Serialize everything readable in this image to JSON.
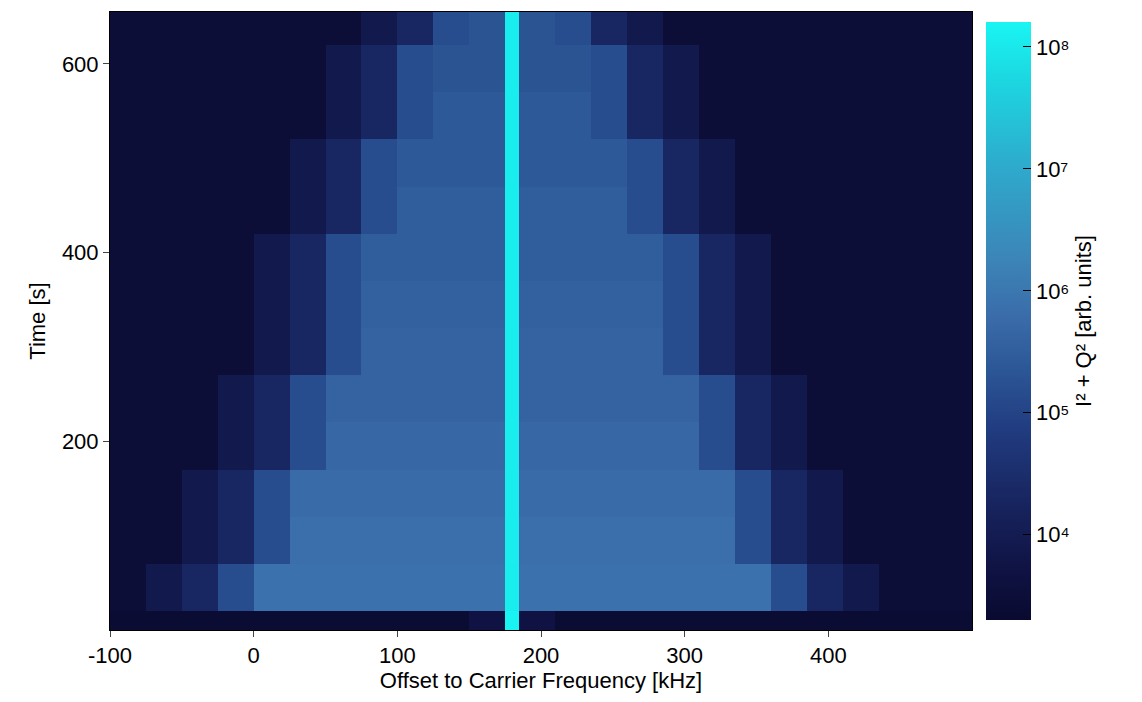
{
  "chart_data": {
    "type": "heatmap",
    "x_label": "Offset to Carrier Frequency [kHz]",
    "y_label": "Time [s]",
    "colorbar_label": "I² + Q² [arb. units]",
    "log": true,
    "x": [
      -100,
      -75,
      -50,
      -25,
      0,
      25,
      50,
      75,
      100,
      125,
      150,
      175,
      185,
      210,
      235,
      260,
      285,
      310,
      335,
      360,
      385,
      410,
      435,
      460,
      500
    ],
    "y": [
      0,
      20,
      70,
      120,
      170,
      220,
      270,
      320,
      370,
      420,
      470,
      520,
      570,
      620,
      655
    ],
    "z": [
      [
        2500.0,
        2500.0,
        2500.0,
        2500.0,
        2500.0,
        2500.0,
        2500.0,
        2500.0,
        2500.0,
        2500.0,
        5000.0,
        150000000.0,
        5000.0,
        2500.0,
        2500.0,
        2500.0,
        2500.0,
        2500.0,
        2500.0,
        2500.0,
        2500.0,
        2500.0,
        2500.0,
        2500.0
      ],
      [
        3000.0,
        8000.0,
        20000.0,
        150000.0,
        800000.0,
        800000.0,
        800000.0,
        800000.0,
        800000.0,
        800000.0,
        800000.0,
        120000000.0,
        800000.0,
        800000.0,
        800000.0,
        800000.0,
        800000.0,
        800000.0,
        800000.0,
        150000.0,
        20000.0,
        8000.0,
        3000.0,
        3000.0
      ],
      [
        3000.0,
        3000.0,
        8000.0,
        20000.0,
        150000.0,
        700000.0,
        700000.0,
        700000.0,
        700000.0,
        700000.0,
        700000.0,
        120000000.0,
        700000.0,
        700000.0,
        700000.0,
        700000.0,
        700000.0,
        700000.0,
        150000.0,
        20000.0,
        8000.0,
        3000.0,
        3000.0,
        3000.0
      ],
      [
        3000.0,
        3000.0,
        8000.0,
        20000.0,
        150000.0,
        600000.0,
        600000.0,
        600000.0,
        600000.0,
        600000.0,
        600000.0,
        120000000.0,
        600000.0,
        600000.0,
        600000.0,
        600000.0,
        600000.0,
        600000.0,
        150000.0,
        20000.0,
        8000.0,
        3000.0,
        3000.0,
        3000.0
      ],
      [
        3000.0,
        3000.0,
        3000.0,
        8000.0,
        20000.0,
        150000.0,
        500000.0,
        500000.0,
        500000.0,
        500000.0,
        500000.0,
        120000000.0,
        500000.0,
        500000.0,
        500000.0,
        500000.0,
        500000.0,
        150000.0,
        20000.0,
        8000.0,
        3000.0,
        3000.0,
        3000.0,
        3000.0
      ],
      [
        3000.0,
        3000.0,
        3000.0,
        8000.0,
        20000.0,
        150000.0,
        400000.0,
        400000.0,
        400000.0,
        400000.0,
        400000.0,
        120000000.0,
        400000.0,
        400000.0,
        400000.0,
        400000.0,
        400000.0,
        150000.0,
        20000.0,
        8000.0,
        3000.0,
        3000.0,
        3000.0,
        3000.0
      ],
      [
        3000.0,
        3000.0,
        3000.0,
        3000.0,
        8000.0,
        20000.0,
        150000.0,
        400000.0,
        400000.0,
        400000.0,
        400000.0,
        120000000.0,
        400000.0,
        400000.0,
        400000.0,
        400000.0,
        150000.0,
        20000.0,
        8000.0,
        3000.0,
        3000.0,
        3000.0,
        3000.0,
        3000.0
      ],
      [
        3000.0,
        3000.0,
        3000.0,
        3000.0,
        8000.0,
        20000.0,
        150000.0,
        350000.0,
        350000.0,
        350000.0,
        350000.0,
        120000000.0,
        350000.0,
        350000.0,
        350000.0,
        350000.0,
        150000.0,
        20000.0,
        8000.0,
        3000.0,
        3000.0,
        3000.0,
        3000.0,
        3000.0
      ],
      [
        3000.0,
        3000.0,
        3000.0,
        3000.0,
        8000.0,
        20000.0,
        150000.0,
        300000.0,
        300000.0,
        300000.0,
        300000.0,
        120000000.0,
        300000.0,
        300000.0,
        300000.0,
        300000.0,
        150000.0,
        20000.0,
        8000.0,
        3000.0,
        3000.0,
        3000.0,
        3000.0,
        3000.0
      ],
      [
        3000.0,
        3000.0,
        3000.0,
        3000.0,
        3000.0,
        8000.0,
        20000.0,
        150000.0,
        300000.0,
        300000.0,
        300000.0,
        120000000.0,
        300000.0,
        300000.0,
        300000.0,
        150000.0,
        20000.0,
        8000.0,
        3000.0,
        3000.0,
        3000.0,
        3000.0,
        3000.0,
        3000.0
      ],
      [
        3000.0,
        3000.0,
        3000.0,
        3000.0,
        3000.0,
        8000.0,
        20000.0,
        150000.0,
        250000.0,
        250000.0,
        250000.0,
        120000000.0,
        250000.0,
        250000.0,
        250000.0,
        150000.0,
        20000.0,
        8000.0,
        3000.0,
        3000.0,
        3000.0,
        3000.0,
        3000.0,
        3000.0
      ],
      [
        3000.0,
        3000.0,
        3000.0,
        3000.0,
        3000.0,
        3000.0,
        8000.0,
        20000.0,
        150000.0,
        250000.0,
        250000.0,
        120000000.0,
        250000.0,
        250000.0,
        150000.0,
        20000.0,
        8000.0,
        3000.0,
        3000.0,
        3000.0,
        3000.0,
        3000.0,
        3000.0,
        3000.0
      ],
      [
        3000.0,
        3000.0,
        3000.0,
        3000.0,
        3000.0,
        3000.0,
        8000.0,
        20000.0,
        150000.0,
        200000.0,
        200000.0,
        120000000.0,
        200000.0,
        200000.0,
        150000.0,
        20000.0,
        8000.0,
        3000.0,
        3000.0,
        3000.0,
        3000.0,
        3000.0,
        3000.0,
        3000.0
      ],
      [
        3000.0,
        3000.0,
        3000.0,
        3000.0,
        3000.0,
        3000.0,
        3000.0,
        8000.0,
        20000.0,
        150000.0,
        200000.0,
        120000000.0,
        200000.0,
        150000.0,
        20000.0,
        8000.0,
        3000.0,
        3000.0,
        3000.0,
        3000.0,
        3000.0,
        3000.0,
        3000.0,
        3000.0
      ]
    ],
    "xlim": [
      -100,
      500
    ],
    "xticks": [
      -100,
      0,
      100,
      200,
      300,
      400
    ],
    "ylim": [
      0,
      655
    ],
    "yticks": [
      200,
      400,
      600
    ],
    "zlim": [
      2000,
      160000000
    ],
    "zticks": [
      {
        "value": 10000,
        "label": "10⁴"
      },
      {
        "value": 100000,
        "label": "10⁵"
      },
      {
        "value": 1000000,
        "label": "10⁶"
      },
      {
        "value": 10000000,
        "label": "10⁷"
      },
      {
        "value": 100000000,
        "label": "10⁸"
      }
    ]
  }
}
